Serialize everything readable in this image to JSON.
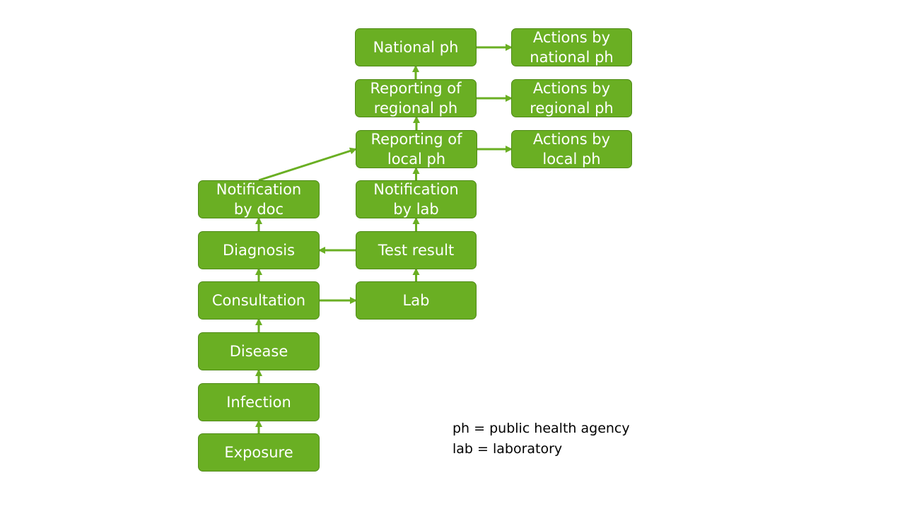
{
  "colors": {
    "box_fill": "#6aaf23",
    "box_border": "#4f8a17",
    "arrow": "#6aaf23",
    "box_text": "#ffffff"
  },
  "nodes": {
    "national_ph": "National ph",
    "actions_national": "Actions by\nnational ph",
    "reporting_regional": "Reporting of\nregional ph",
    "actions_regional": "Actions by\nregional ph",
    "reporting_local": "Reporting of\nlocal ph",
    "actions_local": "Actions by\nlocal ph",
    "notification_doc": "Notification\nby doc",
    "notification_lab": "Notification\nby lab",
    "diagnosis": "Diagnosis",
    "test_result": "Test result",
    "consultation": "Consultation",
    "lab": "Lab",
    "disease": "Disease",
    "infection": "Infection",
    "exposure": "Exposure"
  },
  "edges": [
    [
      "exposure",
      "infection"
    ],
    [
      "infection",
      "disease"
    ],
    [
      "disease",
      "consultation"
    ],
    [
      "consultation",
      "diagnosis"
    ],
    [
      "diagnosis",
      "notification_doc"
    ],
    [
      "consultation",
      "lab"
    ],
    [
      "lab",
      "test_result"
    ],
    [
      "test_result",
      "diagnosis"
    ],
    [
      "test_result",
      "notification_lab"
    ],
    [
      "notification_lab",
      "reporting_local"
    ],
    [
      "notification_doc",
      "reporting_local"
    ],
    [
      "reporting_local",
      "reporting_regional"
    ],
    [
      "reporting_regional",
      "national_ph"
    ],
    [
      "reporting_local",
      "actions_local"
    ],
    [
      "reporting_regional",
      "actions_regional"
    ],
    [
      "national_ph",
      "actions_national"
    ]
  ],
  "legend": {
    "ph": "ph = public health agency",
    "lab": "lab = laboratory"
  }
}
